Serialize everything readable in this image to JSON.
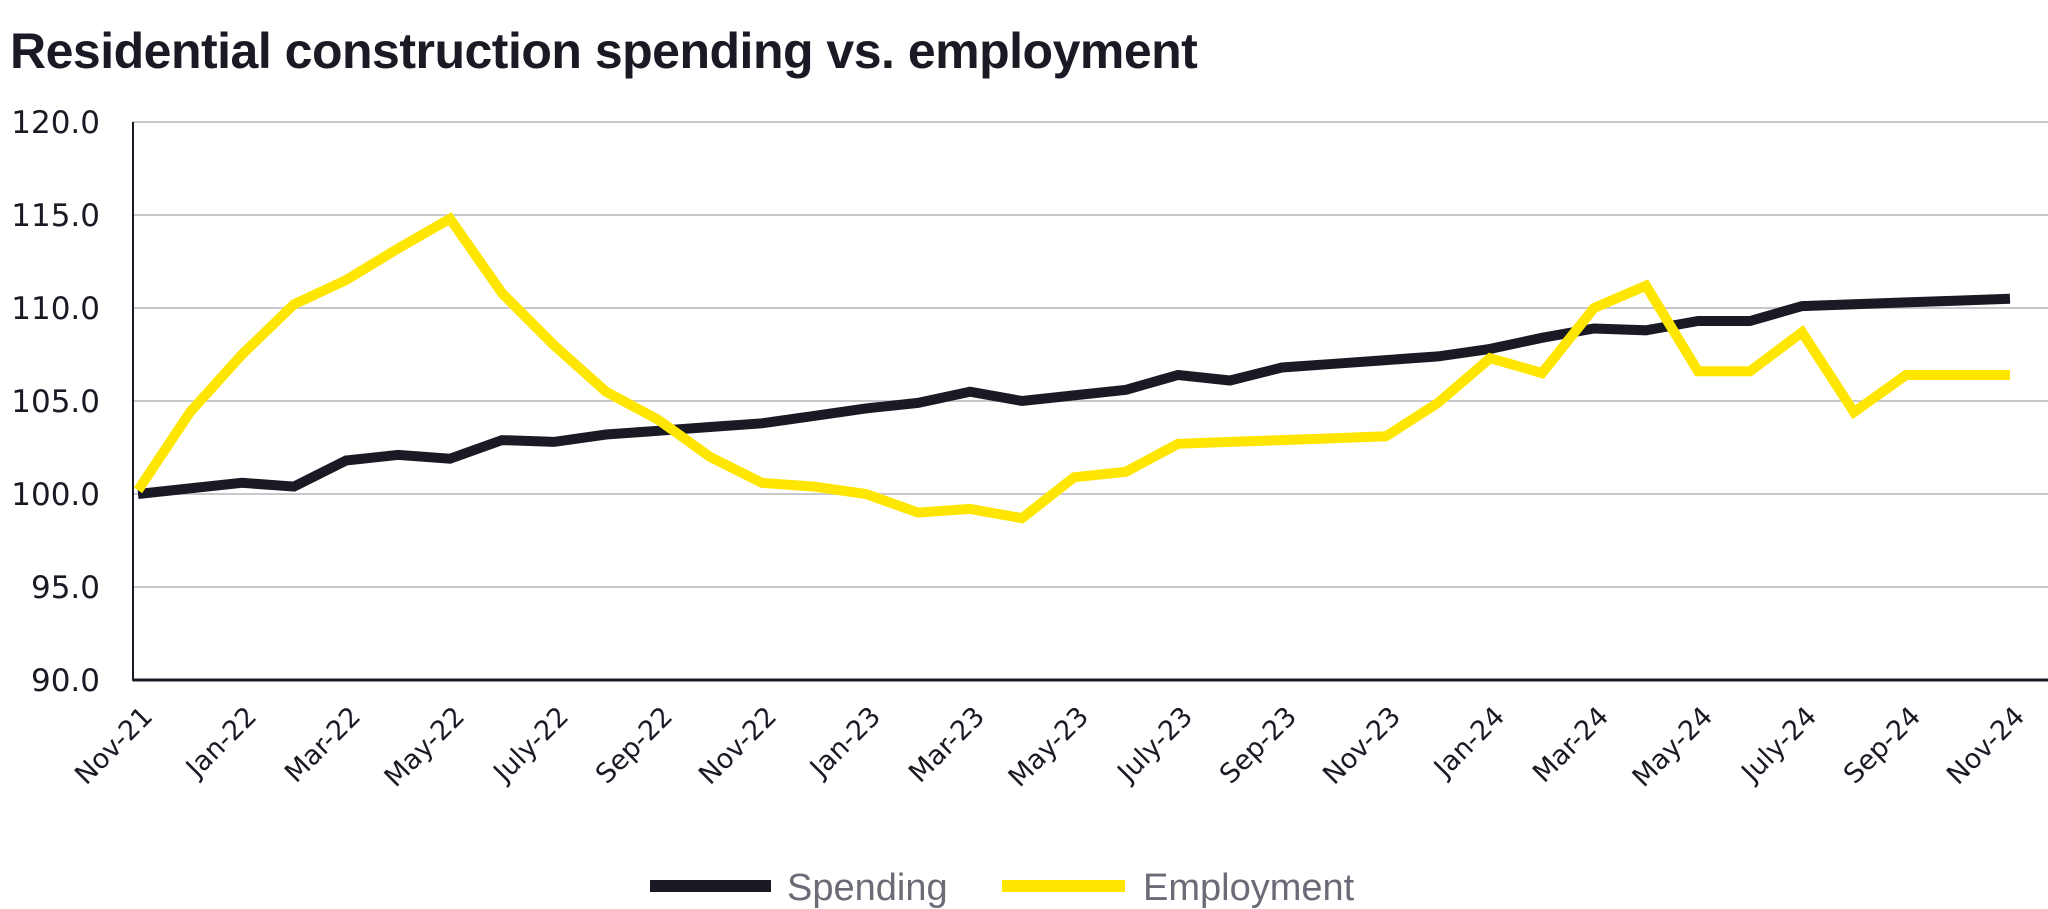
{
  "chart_data": {
    "type": "line",
    "title": "Residential construction spending vs. employment",
    "xlabel": "",
    "ylabel": "",
    "ylim": [
      90,
      120
    ],
    "yticks": [
      "90.0",
      "95.0",
      "100.0",
      "105.0",
      "110.0",
      "115.0",
      "120.0"
    ],
    "ytick_values": [
      90,
      95,
      100,
      105,
      110,
      115,
      120
    ],
    "grid": true,
    "legend_position": "bottom-center",
    "x": [
      "Nov-21",
      "Dec-21",
      "Jan-22",
      "Feb-22",
      "Mar-22",
      "Apr-22",
      "May-22",
      "Jun-22",
      "July-22",
      "Aug-22",
      "Sep-22",
      "Oct-22",
      "Nov-22",
      "Dec-22",
      "Jan-23",
      "Feb-23",
      "Mar-23",
      "Apr-23",
      "May-23",
      "Jun-23",
      "July-23",
      "Aug-23",
      "Sep-23",
      "Oct-23",
      "Nov-23",
      "Dec-23",
      "Jan-24",
      "Feb-24",
      "Mar-24",
      "Apr-24",
      "May-24",
      "Jun-24",
      "July-24",
      "Aug-24",
      "Sep-24",
      "Oct-24",
      "Nov-24"
    ],
    "xtick_labels": [
      "Nov-21",
      "Jan-22",
      "Mar-22",
      "May-22",
      "July-22",
      "Sep-22",
      "Nov-22",
      "Jan-23",
      "Mar-23",
      "May-23",
      "July-23",
      "Sep-23",
      "Nov-23",
      "Jan-24",
      "Mar-24",
      "May-24",
      "July-24",
      "Sep-24",
      "Nov-24"
    ],
    "series": [
      {
        "name": "Spending",
        "color": "#1a1a24",
        "values": [
          100.0,
          100.3,
          100.6,
          100.4,
          101.8,
          102.1,
          101.9,
          102.9,
          102.8,
          103.2,
          103.4,
          103.6,
          103.8,
          104.2,
          104.6,
          104.9,
          105.5,
          105.0,
          105.3,
          105.6,
          106.4,
          106.1,
          106.8,
          107.0,
          107.2,
          107.4,
          107.8,
          108.4,
          108.9,
          108.8,
          109.3,
          109.3,
          110.1,
          110.2,
          110.3,
          110.4,
          110.5
        ]
      },
      {
        "name": "Employment",
        "color": "#ffe600",
        "values": [
          100.2,
          104.4,
          107.5,
          110.2,
          111.5,
          113.2,
          114.8,
          110.8,
          108.0,
          105.5,
          104.0,
          102.0,
          100.6,
          100.4,
          100.0,
          99.0,
          99.2,
          98.7,
          100.9,
          101.2,
          102.7,
          102.8,
          102.9,
          103.0,
          103.1,
          104.9,
          107.3,
          106.5,
          110.0,
          111.2,
          106.6,
          106.6,
          108.7,
          104.4,
          106.4,
          106.4,
          106.4
        ]
      }
    ]
  },
  "legend": {
    "items": [
      {
        "label": "Spending",
        "color": "#1a1a24"
      },
      {
        "label": "Employment",
        "color": "#ffe600"
      }
    ]
  },
  "colors": {
    "grid": "#c8c8cc",
    "axis": "#1a1a24",
    "legend_text": "#6b6b78"
  }
}
